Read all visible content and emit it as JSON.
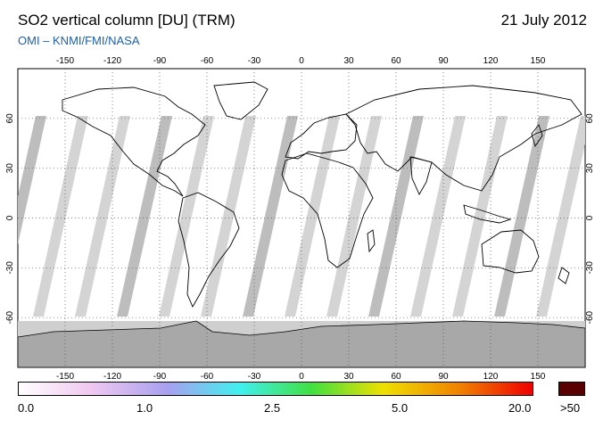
{
  "header": {
    "title": "SO2 vertical column [DU] (TRM)",
    "date": "21 July 2012",
    "credit": "OMI  –  KNMI/FMI/NASA"
  },
  "map": {
    "projection": "equirectangular",
    "lon_range": [
      -180,
      180
    ],
    "lat_range": [
      -90,
      90
    ],
    "lon_ticks": [
      "-150",
      "-120",
      "-90",
      "-60",
      "-30",
      "0",
      "30",
      "60",
      "90",
      "120",
      "150"
    ],
    "lat_ticks": [
      "60",
      "30",
      "0",
      "-30",
      "-60"
    ],
    "grid": "dotted",
    "land_outline_color": "#000000",
    "swath_color": "#c8c8c8",
    "antarctic_fill": "#a8a8a8"
  },
  "colorbar": {
    "labels": [
      "0.0",
      "1.0",
      "2.5",
      "5.0",
      "20.0",
      ">50"
    ],
    "colors": [
      "#ffffff",
      "#f0c8f0",
      "#a8a0f0",
      "#40f0f0",
      "#40e040",
      "#f0e000",
      "#f08000",
      "#f00000"
    ],
    "overflow_color": "#5a0000"
  }
}
